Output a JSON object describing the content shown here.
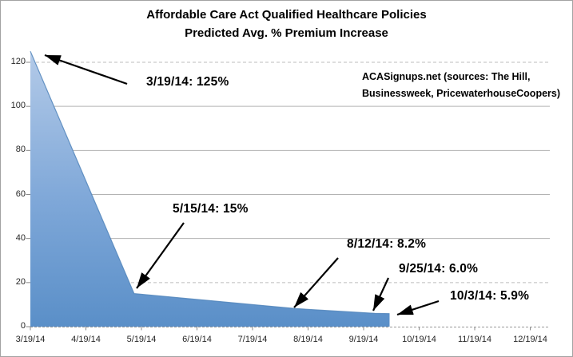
{
  "header": {
    "title_line1": "Affordable Care Act Qualified Healthcare Policies",
    "title_line2": "Predicted Avg. % Premium Increase"
  },
  "source_note": {
    "line1": "ACASignups.net (sources: The Hill,",
    "line2": "Businessweek, PricewaterhouseCoopers)"
  },
  "chart_data": {
    "type": "area",
    "title": "Affordable Care Act Qualified Healthcare Policies",
    "subtitle": "Predicted Avg. % Premium Increase",
    "series_name": "Predicted Avg. % Premium Increase",
    "xlabel": "",
    "ylabel": "",
    "ylim": [
      0,
      130
    ],
    "grid": true,
    "legend": "none",
    "x_ticks": [
      "3/19/14",
      "4/19/14",
      "5/19/14",
      "6/19/14",
      "7/19/14",
      "8/19/14",
      "9/19/14",
      "10/19/14",
      "11/19/14",
      "12/19/14"
    ],
    "y_ticks": [
      0,
      20,
      40,
      60,
      80,
      100,
      120
    ],
    "points": [
      {
        "date": "3/19/14",
        "value": 125,
        "months_from_start": 0
      },
      {
        "date": "5/15/14",
        "value": 15,
        "months_from_start": 1.867
      },
      {
        "date": "8/12/14",
        "value": 8.2,
        "months_from_start": 4.774
      },
      {
        "date": "9/25/14",
        "value": 6.0,
        "months_from_start": 6.2
      },
      {
        "date": "10/3/14",
        "value": 5.9,
        "months_from_start": 6.467
      }
    ],
    "annotations": [
      {
        "label": "3/19/14: 125%"
      },
      {
        "label": "5/15/14: 15%"
      },
      {
        "label": "8/12/14: 8.2%"
      },
      {
        "label": "9/25/14: 6.0%"
      },
      {
        "label": "10/3/14: 5.9%"
      }
    ],
    "colors": {
      "area_gradient_top": "#b3cae8",
      "area_gradient_bottom": "#5a8fc8",
      "area_edge": "#5185bb",
      "gridline": "#b3b3b3",
      "gridline_dashed": "#bcbcbc",
      "axis": "#999999",
      "annotation_arrow": "#000000"
    }
  }
}
